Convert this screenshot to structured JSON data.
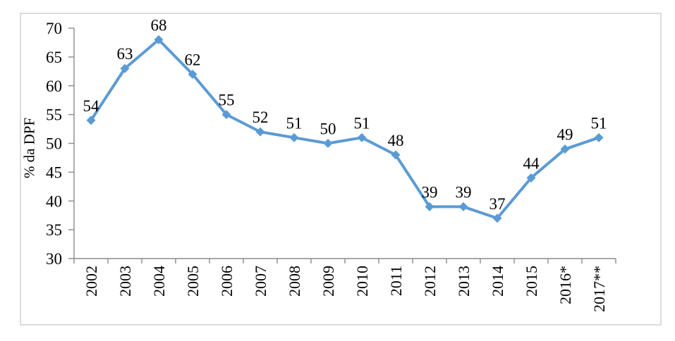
{
  "chart_data": {
    "type": "line",
    "title": "",
    "xlabel": "",
    "ylabel": "% da DPF",
    "categories": [
      "2002",
      "2003",
      "2004",
      "2005",
      "2006",
      "2007",
      "2008",
      "2009",
      "2010",
      "2011",
      "2012",
      "2013",
      "2014",
      "2015",
      "2016*",
      "2017**"
    ],
    "values": [
      54,
      63,
      68,
      62,
      55,
      52,
      51,
      50,
      51,
      48,
      39,
      39,
      37,
      44,
      49,
      51
    ],
    "ylim": [
      30,
      70
    ],
    "ytick_step": 5,
    "yticks": [
      30,
      35,
      40,
      45,
      50,
      55,
      60,
      65,
      70
    ],
    "grid": false,
    "legend": "none",
    "marker": "diamond",
    "label_position": "above",
    "style": {
      "line_color": "#5B9BD5",
      "axis_color": "#8C8C8C",
      "text_color": "#000000",
      "frame_border_color": "#DCDCDC",
      "background": "#FFFFFF"
    }
  }
}
